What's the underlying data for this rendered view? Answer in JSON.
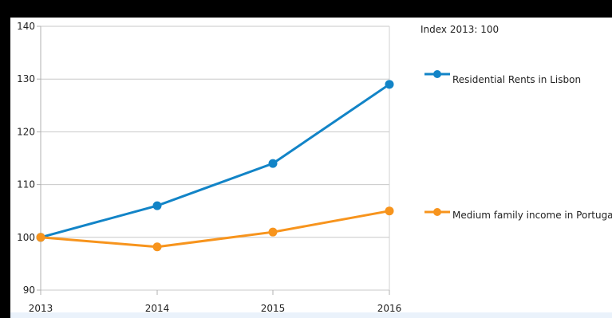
{
  "chart_data": {
    "type": "line",
    "note": "Index 2013: 100",
    "title": "",
    "xlabel": "",
    "ylabel": "",
    "categories": [
      "2013",
      "2014",
      "2015",
      "2016"
    ],
    "ylim": [
      90,
      140
    ],
    "yticks": [
      "90",
      "100",
      "110",
      "120",
      "130",
      "140"
    ],
    "grid": "horizontal",
    "legend_position": "right",
    "series": [
      {
        "name": "Residential Rents in Lisbon",
        "color": "#1284c7",
        "values": [
          100,
          106,
          114,
          129
        ]
      },
      {
        "name": "Medium family income in Portugal",
        "color": "#f7941d",
        "values": [
          100,
          98.2,
          101,
          105
        ]
      }
    ],
    "grid_color": "#c8c8c8"
  }
}
